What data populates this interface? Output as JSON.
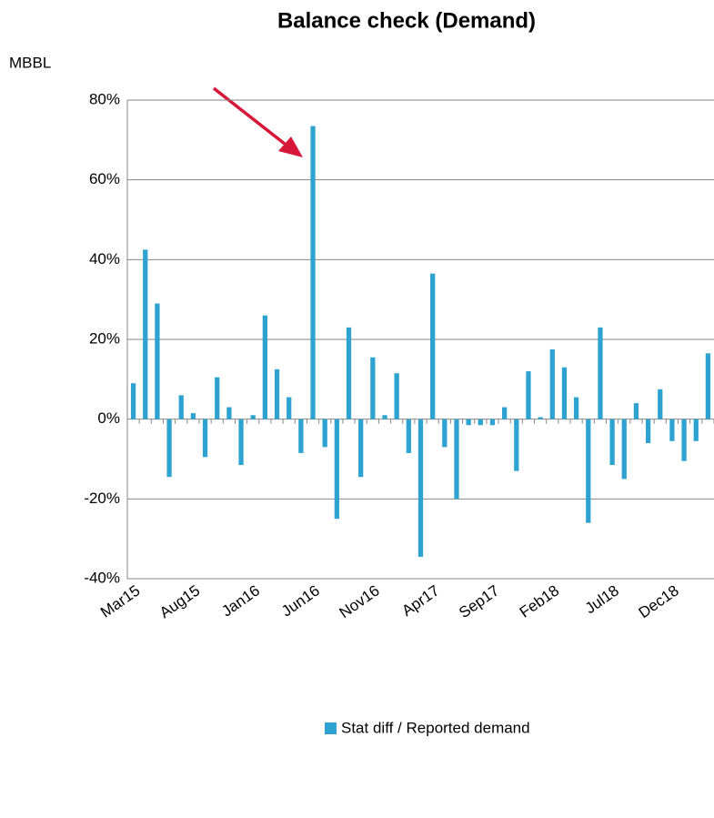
{
  "chart_data": {
    "type": "bar",
    "title": "Balance check (Demand)",
    "y_label": "MBBL",
    "categories": [
      "Mar15",
      null,
      null,
      null,
      null,
      "Aug15",
      null,
      null,
      null,
      null,
      "Jan16",
      null,
      null,
      null,
      null,
      "Jun16",
      null,
      null,
      null,
      null,
      "Nov16",
      null,
      null,
      null,
      null,
      "Apr17",
      null,
      null,
      null,
      null,
      "Sep17",
      null,
      null,
      null,
      null,
      "Feb18",
      null,
      null,
      null,
      null,
      "Jul18",
      null,
      null,
      null,
      null,
      "Dec18",
      null,
      null,
      null
    ],
    "series": [
      {
        "name": "Stat diff / Reported demand",
        "color": "#2ea3d1",
        "values": [
          9,
          42.5,
          29,
          -14.5,
          6,
          1.5,
          -9.5,
          10.5,
          3,
          -11.5,
          1,
          26,
          12.5,
          5.5,
          -8.5,
          73.5,
          -7,
          -25,
          23,
          -14.5,
          15.5,
          1,
          11.5,
          -8.5,
          -34.5,
          36.5,
          -7,
          -20,
          -1.5,
          -1.5,
          -1.5,
          3,
          -13,
          12,
          0.5,
          17.5,
          13,
          5.5,
          -26,
          23,
          -11.5,
          -15,
          4,
          -6,
          7.5,
          -5.5,
          -10.5,
          -5.5,
          16.5
        ]
      }
    ],
    "ylim": [
      -40,
      80
    ],
    "yticks": [
      {
        "value": -40,
        "label": "-40%"
      },
      {
        "value": -20,
        "label": "-20%"
      },
      {
        "value": 0,
        "label": "0%"
      },
      {
        "value": 20,
        "label": "20%"
      },
      {
        "value": 40,
        "label": "40%"
      },
      {
        "value": 60,
        "label": "60%"
      },
      {
        "value": 80,
        "label": "80%"
      }
    ],
    "grid": true,
    "legend": "bottom"
  }
}
